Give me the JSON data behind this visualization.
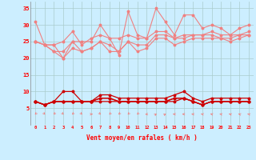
{
  "xlabel": "Vent moyen/en rafales ( km/h )",
  "x": [
    0,
    1,
    2,
    3,
    4,
    5,
    6,
    7,
    8,
    9,
    10,
    11,
    12,
    13,
    14,
    15,
    16,
    17,
    18,
    19,
    20,
    21,
    22,
    23
  ],
  "series_light": [
    [
      31,
      24,
      24,
      20,
      25,
      25,
      25,
      30,
      26,
      21,
      34,
      27,
      26,
      35,
      31,
      27,
      33,
      33,
      29,
      30,
      29,
      27,
      29,
      30
    ],
    [
      25,
      24,
      24,
      25,
      28,
      24,
      26,
      27,
      26,
      26,
      27,
      26,
      26,
      28,
      28,
      26,
      27,
      27,
      27,
      28,
      27,
      27,
      27,
      28
    ],
    [
      25,
      24,
      22,
      22,
      25,
      22,
      23,
      25,
      24,
      22,
      25,
      24,
      24,
      27,
      27,
      26,
      26,
      27,
      27,
      27,
      26,
      26,
      27,
      27
    ],
    [
      25,
      24,
      22,
      20,
      23,
      22,
      23,
      25,
      22,
      22,
      25,
      22,
      23,
      26,
      26,
      24,
      25,
      26,
      26,
      26,
      26,
      25,
      26,
      27
    ]
  ],
  "series_dark": [
    [
      7,
      6,
      7,
      10,
      10,
      7,
      7,
      9,
      9,
      8,
      8,
      8,
      8,
      8,
      8,
      9,
      10,
      8,
      7,
      8,
      8,
      8,
      8,
      8
    ],
    [
      7,
      6,
      7,
      7,
      7,
      7,
      7,
      8,
      8,
      7,
      7,
      7,
      7,
      7,
      7,
      8,
      8,
      7,
      6,
      7,
      7,
      7,
      7,
      7
    ],
    [
      7,
      6,
      7,
      7,
      7,
      7,
      7,
      8,
      8,
      7,
      7,
      7,
      7,
      7,
      7,
      8,
      8,
      7,
      6,
      7,
      7,
      7,
      7,
      7
    ],
    [
      7,
      6,
      7,
      7,
      7,
      7,
      7,
      7,
      7,
      7,
      7,
      7,
      7,
      7,
      7,
      7,
      8,
      7,
      6,
      7,
      7,
      7,
      7,
      7
    ]
  ],
  "wind_angles": [
    200,
    160,
    200,
    160,
    200,
    160,
    90,
    160,
    200,
    200,
    200,
    200,
    250,
    30,
    30,
    270,
    270,
    270,
    300,
    300,
    300,
    310,
    310,
    310
  ],
  "light_color": "#f08080",
  "dark_color": "#cc0000",
  "bg_color": "#cceeff",
  "grid_color": "#aacccc",
  "ylim": [
    0,
    37
  ],
  "yticks": [
    5,
    10,
    15,
    20,
    25,
    30,
    35
  ]
}
